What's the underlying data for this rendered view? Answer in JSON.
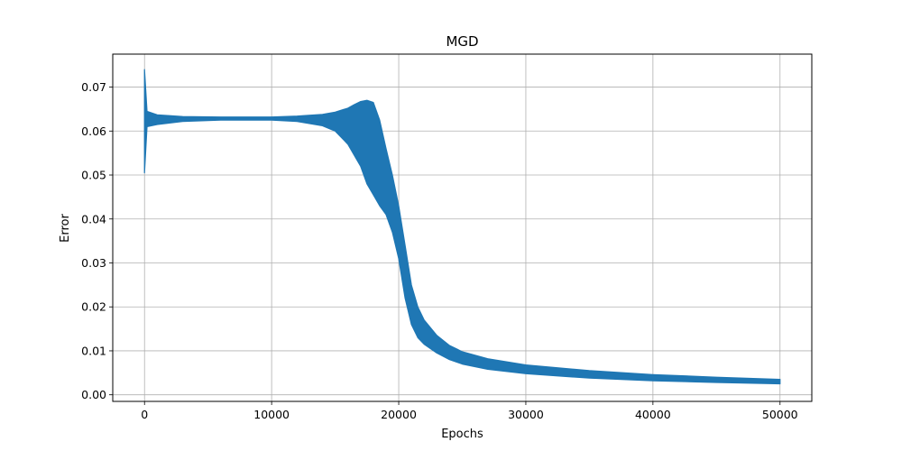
{
  "chart_data": {
    "type": "line",
    "title": "MGD",
    "xlabel": "Epochs",
    "ylabel": "Error",
    "xlim": [
      -2500,
      52500
    ],
    "ylim": [
      -0.0015,
      0.0775
    ],
    "grid": true,
    "colors": {
      "series": "#1f77b4",
      "grid": "#b0b0b0",
      "axes": "#000000"
    },
    "x_ticks": [
      0,
      10000,
      20000,
      30000,
      40000,
      50000
    ],
    "x_tick_labels": [
      "0",
      "10000",
      "20000",
      "30000",
      "40000",
      "50000"
    ],
    "y_ticks": [
      0.0,
      0.01,
      0.02,
      0.03,
      0.04,
      0.05,
      0.06,
      0.07
    ],
    "y_tick_labels": [
      "0.00",
      "0.01",
      "0.02",
      "0.03",
      "0.04",
      "0.05",
      "0.06",
      "0.07"
    ],
    "series": [
      {
        "x": [
          0,
          200,
          1000,
          3000,
          6000,
          10000,
          12000,
          14000,
          15000,
          16000,
          16500,
          17000,
          17500,
          18000,
          18500,
          19000,
          19500,
          20000,
          20500,
          21000,
          21500,
          22000,
          23000,
          24000,
          25000,
          27000,
          30000,
          35000,
          40000,
          45000,
          50000
        ],
        "upper": [
          0.074,
          0.0645,
          0.0637,
          0.0633,
          0.0632,
          0.0632,
          0.0634,
          0.0638,
          0.0643,
          0.0652,
          0.066,
          0.0667,
          0.067,
          0.0665,
          0.0625,
          0.056,
          0.05,
          0.043,
          0.034,
          0.025,
          0.02,
          0.017,
          0.0135,
          0.0112,
          0.0098,
          0.0082,
          0.0068,
          0.0055,
          0.0046,
          0.004,
          0.0035
        ],
        "lower": [
          0.0505,
          0.061,
          0.0615,
          0.0622,
          0.0625,
          0.0625,
          0.0622,
          0.0612,
          0.06,
          0.057,
          0.0545,
          0.052,
          0.048,
          0.0455,
          0.043,
          0.041,
          0.037,
          0.031,
          0.022,
          0.016,
          0.013,
          0.0115,
          0.0095,
          0.008,
          0.007,
          0.0058,
          0.0048,
          0.0038,
          0.0032,
          0.0028,
          0.0025
        ]
      }
    ]
  }
}
